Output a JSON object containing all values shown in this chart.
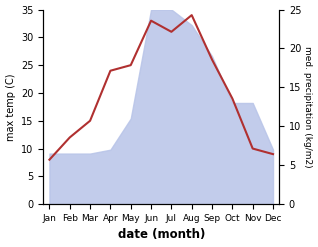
{
  "months": [
    "Jan",
    "Feb",
    "Mar",
    "Apr",
    "May",
    "Jun",
    "Jul",
    "Aug",
    "Sep",
    "Oct",
    "Nov",
    "Dec"
  ],
  "temperature": [
    8,
    12,
    15,
    24,
    25,
    33,
    31,
    34,
    26,
    19,
    10,
    9
  ],
  "precipitation_kg": [
    6.5,
    6.5,
    6.5,
    7,
    11,
    25,
    25,
    23,
    19,
    13,
    13,
    7
  ],
  "temp_color": "#b03030",
  "precip_fill_color": "#b8c4e8",
  "ylim_temp": [
    0,
    35
  ],
  "ylim_precip": [
    0,
    25
  ],
  "ylabel_left": "max temp (C)",
  "ylabel_right": "med. precipitation (kg/m2)",
  "xlabel": "date (month)",
  "bg_color": "#ffffff"
}
